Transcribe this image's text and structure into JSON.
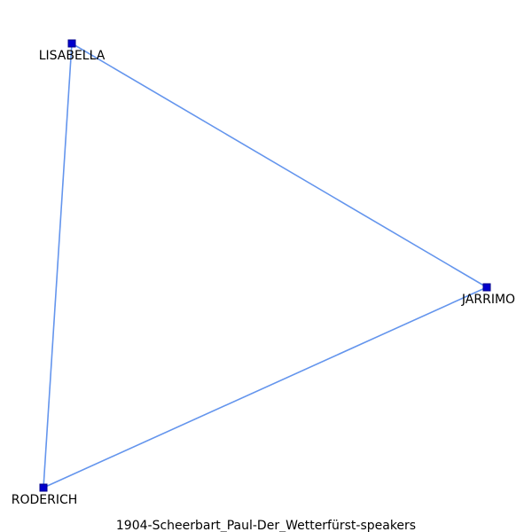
{
  "caption": "1904-Scheerbart_Paul-Der_Wetterfürst-speakers",
  "colors": {
    "edge": "#6495ED",
    "node_fill": "#0000CD",
    "node_stroke": "#00008B",
    "label": "#000000"
  },
  "nodes": [
    {
      "id": "LISABELLA",
      "label": "LISABELLA"
    },
    {
      "id": "JARRIMO",
      "label": "JARRIMO"
    },
    {
      "id": "RODERICH",
      "label": "RODERICH"
    }
  ],
  "edges": [
    {
      "source": "LISABELLA",
      "target": "JARRIMO"
    },
    {
      "source": "JARRIMO",
      "target": "RODERICH"
    },
    {
      "source": "RODERICH",
      "target": "LISABELLA"
    }
  ]
}
